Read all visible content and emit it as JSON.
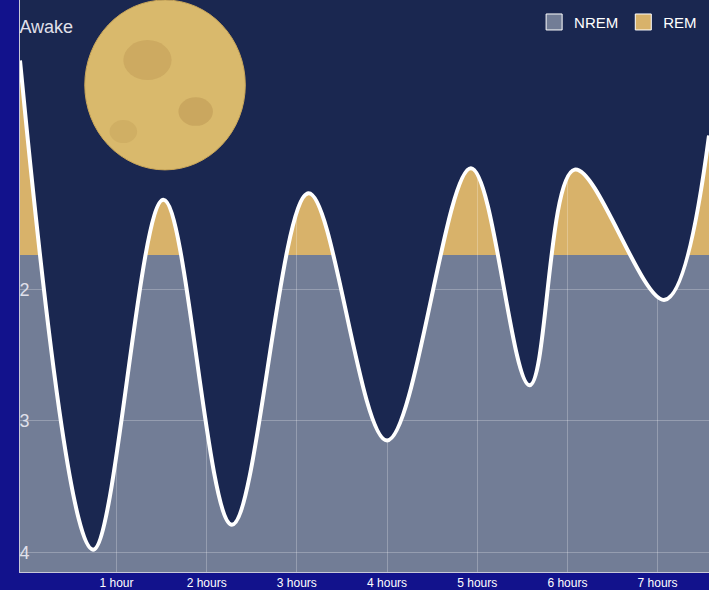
{
  "chart_data": {
    "type": "line",
    "x": [
      -0.07,
      0.74,
      1.52,
      2.28,
      3.13,
      4.0,
      4.93,
      5.58,
      6.08,
      7.08,
      7.57
    ],
    "values": [
      0.26,
      3.98,
      1.32,
      3.79,
      1.27,
      3.15,
      1.08,
      2.73,
      1.09,
      2.08,
      0.83
    ],
    "color": "#ffffff",
    "regions": [
      {
        "name": "REM",
        "color": "#d8b26a"
      },
      {
        "name": "NREM",
        "color": "#727d96"
      }
    ],
    "rem_threshold": 1.74,
    "xlim": [
      -0.07,
      7.57
    ],
    "xticks": [
      {
        "value": 1,
        "label": "1 hour"
      },
      {
        "value": 2,
        "label": "2 hours"
      },
      {
        "value": 3,
        "label": "3 hours"
      },
      {
        "value": 4,
        "label": "4 hours"
      },
      {
        "value": 5,
        "label": "5 hours"
      },
      {
        "value": 6,
        "label": "6 hours"
      },
      {
        "value": 7,
        "label": "7 hours"
      }
    ],
    "ylim": [
      4.15,
      -0.2
    ],
    "yticks": [
      {
        "value": 0,
        "label": "Awake"
      },
      2,
      3,
      4
    ],
    "grid": true,
    "legend": "top-right"
  }
}
